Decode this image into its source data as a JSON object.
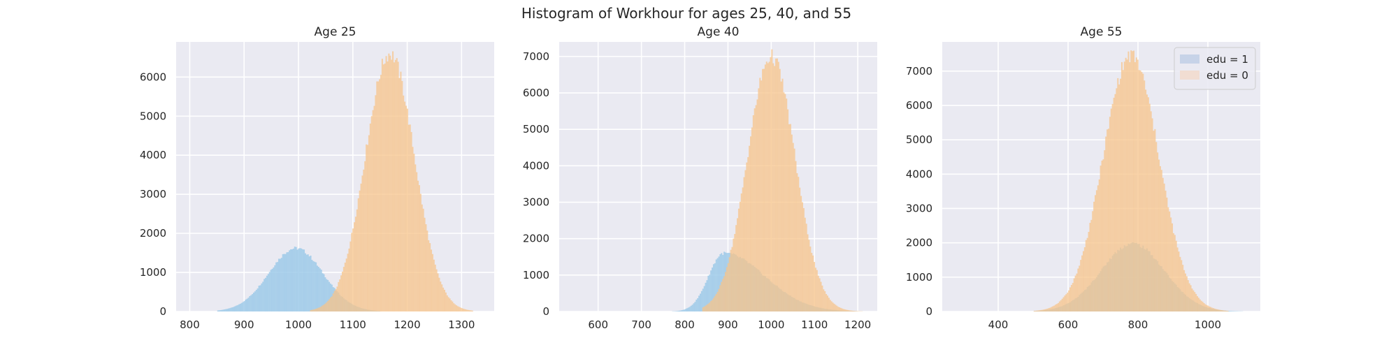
{
  "figure": {
    "title": "Histogram of Workhour for ages 25, 40, and 55"
  },
  "colors": {
    "background": "#eaeaf2",
    "grid": "#ffffff",
    "edu1": "#9ecae9",
    "edu0": "#f7c48b",
    "overlap": "#c2c09e"
  },
  "legend": {
    "location": "top-right",
    "panel": 2,
    "entries": [
      {
        "label": "edu = 1",
        "color": "#c7d3e8"
      },
      {
        "label": "edu = 0",
        "color": "#f1ddd2"
      }
    ]
  },
  "chart_data": [
    {
      "type": "histogram",
      "title": "Age 25",
      "xlim": [
        775,
        1360
      ],
      "ylim": [
        0,
        6900
      ],
      "xticks": [
        800,
        900,
        1000,
        1100,
        1200,
        1300
      ],
      "yticks": [
        0,
        1000,
        2000,
        3000,
        4000,
        5000,
        6000
      ],
      "series": [
        {
          "name": "edu = 1",
          "shape": "normal",
          "mean": 995,
          "sd": 50,
          "peak": 1620,
          "range": [
            850,
            1150
          ]
        },
        {
          "name": "edu = 0",
          "shape": "normal",
          "mean": 1168,
          "sd": 45,
          "peak": 6600,
          "range": [
            1020,
            1320
          ]
        }
      ]
    },
    {
      "type": "histogram",
      "title": "Age 40",
      "xlim": [
        510,
        1245
      ],
      "ylim": [
        0,
        7400
      ],
      "xticks": [
        600,
        700,
        800,
        900,
        1000,
        1100,
        1200
      ],
      "yticks": [
        0,
        1000,
        2000,
        3000,
        4000,
        5000,
        6000,
        7000
      ],
      "series": [
        {
          "name": "edu = 1",
          "shape": "skewed",
          "mode": 890,
          "sd_left": 35,
          "sd_right": 95,
          "peak": 1600,
          "range": [
            720,
            1200
          ]
        },
        {
          "name": "edu = 0",
          "shape": "normal",
          "mean": 1000,
          "sd": 55,
          "peak": 7000,
          "range": [
            840,
            1210
          ]
        }
      ]
    },
    {
      "type": "histogram",
      "title": "Age 55",
      "xlim": [
        240,
        1150
      ],
      "ylim": [
        0,
        7850
      ],
      "xticks": [
        400,
        600,
        800,
        1000
      ],
      "yticks": [
        0,
        1000,
        2000,
        3000,
        4000,
        5000,
        6000,
        7000
      ],
      "series": [
        {
          "name": "edu = 1",
          "shape": "normal",
          "mean": 785,
          "sd": 90,
          "peak": 1980,
          "range": [
            500,
            1100
          ]
        },
        {
          "name": "edu = 0",
          "shape": "normal",
          "mean": 780,
          "sd": 80,
          "peak": 7450,
          "range": [
            500,
            1060
          ]
        }
      ]
    }
  ]
}
